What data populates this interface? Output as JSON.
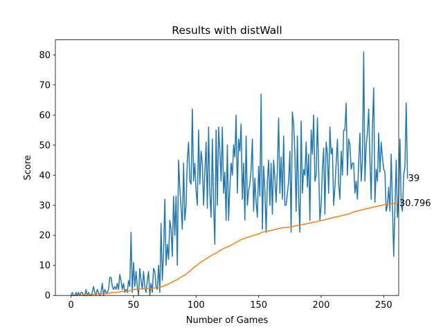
{
  "chart_data": {
    "type": "line",
    "title": "Results with distWall",
    "xlabel": "Number of Games",
    "ylabel": "Score",
    "xlim": [
      -12.5,
      262
    ],
    "ylim": [
      0,
      85
    ],
    "xticks": [
      0,
      50,
      100,
      150,
      200,
      250
    ],
    "yticks": [
      0,
      10,
      20,
      30,
      40,
      50,
      60,
      70,
      80
    ],
    "grid": false,
    "series": [
      {
        "color": "#1f77b4",
        "values": [
          0,
          1,
          0,
          0,
          1,
          0,
          1,
          0,
          1,
          1,
          0,
          0,
          2,
          0,
          1,
          0,
          0,
          1,
          3,
          1,
          0,
          2,
          1,
          0,
          1,
          4,
          0,
          2,
          1,
          1,
          2,
          6,
          6,
          3,
          2,
          3,
          2,
          4,
          2,
          7,
          5,
          2,
          4,
          1,
          2,
          1,
          5,
          3,
          21,
          1,
          11,
          3,
          8,
          3,
          0,
          9,
          5,
          2,
          8,
          3,
          1,
          5,
          8,
          0,
          4,
          1,
          9,
          8,
          3,
          2,
          10,
          1,
          24,
          5,
          14,
          32,
          10,
          17,
          12,
          25,
          22,
          13,
          33,
          20,
          33,
          10,
          45,
          36,
          29,
          22,
          44,
          25,
          30,
          45,
          51,
          38,
          37,
          62,
          38,
          44,
          35,
          30,
          55,
          37,
          48,
          44,
          30,
          41,
          51,
          29,
          56,
          34,
          26,
          52,
          30,
          17,
          55,
          30,
          56,
          48,
          38,
          56,
          34,
          41,
          25,
          50,
          25,
          36,
          44,
          40,
          50,
          46,
          60,
          34,
          52,
          48,
          57,
          32,
          44,
          25,
          53,
          30,
          35,
          37,
          42,
          52,
          28,
          39,
          31,
          26,
          43,
          33,
          67,
          22,
          43,
          35,
          21,
          38,
          45,
          30,
          44,
          27,
          45,
          39,
          31,
          42,
          59,
          34,
          46,
          32,
          53,
          30,
          30,
          34,
          38,
          48,
          21,
          61,
          57,
          47,
          28,
          53,
          32,
          21,
          58,
          34,
          42,
          40,
          51,
          36,
          47,
          25,
          55,
          47,
          60,
          38,
          40,
          59,
          42,
          25,
          30,
          42,
          49,
          27,
          51,
          47,
          34,
          56,
          47,
          49,
          30,
          36,
          44,
          52,
          37,
          32,
          48,
          40,
          55,
          55,
          64,
          40,
          52,
          50,
          42,
          44,
          44,
          34,
          38,
          32,
          44,
          54,
          38,
          45,
          81,
          38,
          50,
          54,
          62,
          45,
          32,
          56,
          69,
          31,
          42,
          38,
          54,
          41,
          51,
          46,
          42,
          41,
          28,
          30,
          36,
          28,
          47,
          30,
          13,
          29,
          45,
          26,
          33,
          52,
          30,
          28,
          40,
          43,
          64,
          39
        ],
        "last_label": "39"
      },
      {
        "color": "#ff7f0e",
        "values": [
          0,
          0,
          0,
          0,
          0,
          0,
          0.1,
          0.1,
          0.2,
          0.2,
          0.2,
          0.2,
          0.3,
          0.3,
          0.3,
          0.3,
          0.3,
          0.3,
          0.4,
          0.4,
          0.4,
          0.5,
          0.5,
          0.5,
          0.5,
          0.6,
          0.6,
          0.6,
          0.6,
          0.6,
          0.7,
          0.8,
          0.9,
          0.9,
          1,
          1,
          1,
          1.1,
          1.1,
          1.2,
          1.3,
          1.3,
          1.4,
          1.4,
          1.4,
          1.4,
          1.5,
          1.5,
          1.8,
          1.8,
          2,
          2,
          2.1,
          2.1,
          2.1,
          2.2,
          2.2,
          2.2,
          2.3,
          2.3,
          2.3,
          2.3,
          2.4,
          2.4,
          2.4,
          2.4,
          2.5,
          2.5,
          2.5,
          2.5,
          2.6,
          2.6,
          2.9,
          2.9,
          3.1,
          3.4,
          3.5,
          3.6,
          3.8,
          4,
          4.3,
          4.4,
          4.7,
          4.9,
          5.1,
          5.2,
          5.6,
          5.9,
          6.1,
          6.3,
          6.6,
          6.8,
          7,
          7.4,
          7.8,
          8.1,
          8.4,
          8.9,
          9.2,
          9.6,
          9.9,
          10.1,
          10.5,
          10.8,
          11.1,
          11.4,
          11.6,
          11.9,
          12.2,
          12.4,
          12.8,
          13,
          13.2,
          13.5,
          13.7,
          13.8,
          14.1,
          14.3,
          14.6,
          14.9,
          15.1,
          15.4,
          15.6,
          15.8,
          15.9,
          16.2,
          16.3,
          16.5,
          16.7,
          16.9,
          17.2,
          17.4,
          17.7,
          17.9,
          18.1,
          18.3,
          18.6,
          18.7,
          18.9,
          19,
          19.2,
          19.3,
          19.4,
          19.6,
          19.7,
          19.9,
          20,
          20.1,
          20.2,
          20.3,
          20.5,
          20.6,
          20.9,
          21,
          21.1,
          21.2,
          21.2,
          21.3,
          21.5,
          21.5,
          21.6,
          21.7,
          21.8,
          21.9,
          22,
          22.1,
          22.3,
          22.3,
          22.4,
          22.5,
          22.6,
          22.6,
          22.6,
          22.7,
          22.7,
          22.8,
          22.8,
          22.9,
          23,
          23.1,
          23.2,
          23.3,
          23.3,
          23.4,
          23.5,
          23.6,
          23.7,
          23.7,
          23.8,
          23.9,
          24,
          24.1,
          24.2,
          24.3,
          24.4,
          24.4,
          24.5,
          24.6,
          24.7,
          24.8,
          24.9,
          25,
          25.1,
          25.2,
          25.3,
          25.4,
          25.5,
          25.6,
          25.7,
          25.8,
          25.9,
          26,
          26.1,
          26.2,
          26.3,
          26.4,
          26.5,
          26.6,
          26.7,
          26.8,
          26.9,
          27,
          27.1,
          27.2,
          27.4,
          27.6,
          27.7,
          27.9,
          28,
          28.1,
          28.2,
          28.3,
          28.4,
          28.5,
          28.6,
          28.7,
          28.8,
          28.9,
          29,
          29.1,
          29.2,
          29.3,
          29.4,
          29.5,
          29.6,
          29.7,
          29.8,
          29.9,
          29.9,
          30,
          30.1,
          30.2,
          30.2,
          30.3,
          30.4,
          30.4,
          30.5,
          30.5,
          30.6,
          30.6,
          30.7,
          30.7,
          30.796
        ],
        "last_label": "30.796"
      }
    ]
  }
}
